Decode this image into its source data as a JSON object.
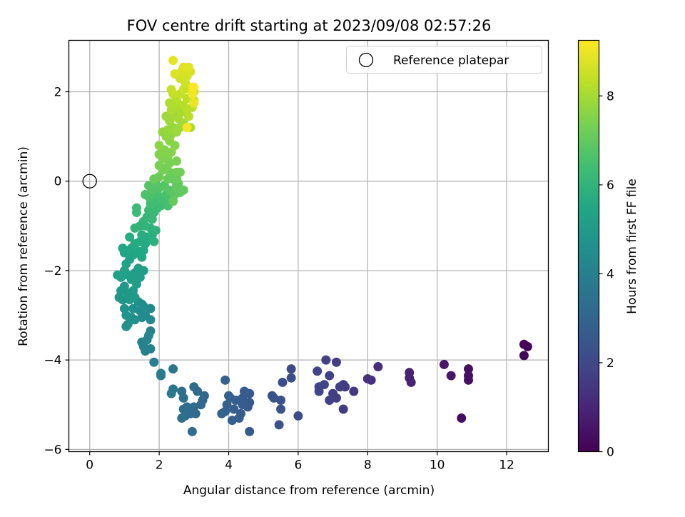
{
  "chart_data": {
    "type": "scatter",
    "title": "FOV centre drift starting at 2023/09/08 02:57:26",
    "xlabel": "Angular distance from reference (arcmin)",
    "ylabel": "Rotation from reference (arcmin)",
    "xlim": [
      -0.6,
      13.2
    ],
    "ylim": [
      -6.05,
      3.15
    ],
    "xticks": [
      0,
      2,
      4,
      6,
      8,
      10,
      12
    ],
    "yticks": [
      -6,
      -4,
      -2,
      0,
      2
    ],
    "xtick_labels": [
      "0",
      "2",
      "4",
      "6",
      "8",
      "10",
      "12"
    ],
    "ytick_labels": [
      "−6",
      "−4",
      "−2",
      "0",
      "2"
    ],
    "grid": true,
    "legend": {
      "position": "top-right",
      "entries": [
        "Reference platepar"
      ]
    },
    "reference_point": {
      "x": 0,
      "y": 0,
      "label": "Reference platepar",
      "marker": "open-circle"
    },
    "colorbar": {
      "label": "Hours from first FF file",
      "colormap": "viridis",
      "range": [
        0,
        9.25
      ],
      "ticks": [
        0,
        2,
        4,
        6,
        8
      ],
      "tick_labels": [
        "0",
        "2",
        "4",
        "6",
        "8"
      ]
    },
    "points": [
      {
        "x": 12.5,
        "y": -3.65,
        "t": 0.1
      },
      {
        "x": 12.6,
        "y": -3.7,
        "t": 0.1
      },
      {
        "x": 12.5,
        "y": -3.9,
        "t": 0.1
      },
      {
        "x": 10.7,
        "y": -5.3,
        "t": 0.3
      },
      {
        "x": 10.9,
        "y": -4.2,
        "t": 0.4
      },
      {
        "x": 10.9,
        "y": -4.35,
        "t": 0.4
      },
      {
        "x": 10.9,
        "y": -4.45,
        "t": 0.4
      },
      {
        "x": 10.2,
        "y": -4.1,
        "t": 0.6
      },
      {
        "x": 10.4,
        "y": -4.35,
        "t": 0.6
      },
      {
        "x": 9.2,
        "y": -4.28,
        "t": 0.9
      },
      {
        "x": 9.2,
        "y": -4.4,
        "t": 0.9
      },
      {
        "x": 9.25,
        "y": -4.5,
        "t": 0.9
      },
      {
        "x": 8.3,
        "y": -4.15,
        "t": 1.2
      },
      {
        "x": 8.0,
        "y": -4.42,
        "t": 1.3
      },
      {
        "x": 8.1,
        "y": -4.45,
        "t": 1.3
      },
      {
        "x": 7.6,
        "y": -4.7,
        "t": 1.5
      },
      {
        "x": 7.3,
        "y": -4.55,
        "t": 1.6
      },
      {
        "x": 7.35,
        "y": -4.6,
        "t": 1.6
      },
      {
        "x": 7.3,
        "y": -5.1,
        "t": 1.6
      },
      {
        "x": 7.2,
        "y": -4.6,
        "t": 1.7
      },
      {
        "x": 7.1,
        "y": -4.05,
        "t": 1.7
      },
      {
        "x": 7.0,
        "y": -4.75,
        "t": 1.7
      },
      {
        "x": 7.1,
        "y": -4.85,
        "t": 1.7
      },
      {
        "x": 6.9,
        "y": -4.35,
        "t": 1.8
      },
      {
        "x": 6.9,
        "y": -4.9,
        "t": 1.8
      },
      {
        "x": 6.8,
        "y": -4.0,
        "t": 1.8
      },
      {
        "x": 6.75,
        "y": -4.55,
        "t": 1.9
      },
      {
        "x": 6.55,
        "y": -4.25,
        "t": 1.9
      },
      {
        "x": 6.6,
        "y": -4.6,
        "t": 1.9
      },
      {
        "x": 6.6,
        "y": -4.7,
        "t": 1.9
      },
      {
        "x": 6.0,
        "y": -5.25,
        "t": 2.1
      },
      {
        "x": 5.8,
        "y": -4.2,
        "t": 2.1
      },
      {
        "x": 5.8,
        "y": -4.4,
        "t": 2.2
      },
      {
        "x": 5.55,
        "y": -4.5,
        "t": 2.2
      },
      {
        "x": 5.5,
        "y": -4.9,
        "t": 2.3
      },
      {
        "x": 5.5,
        "y": -5.1,
        "t": 2.3
      },
      {
        "x": 5.45,
        "y": -5.45,
        "t": 2.3
      },
      {
        "x": 5.3,
        "y": -4.85,
        "t": 2.4
      },
      {
        "x": 5.25,
        "y": -4.8,
        "t": 2.4
      },
      {
        "x": 4.6,
        "y": -5.6,
        "t": 2.6
      },
      {
        "x": 4.6,
        "y": -4.75,
        "t": 2.6
      },
      {
        "x": 4.6,
        "y": -4.95,
        "t": 2.6
      },
      {
        "x": 4.55,
        "y": -5.05,
        "t": 2.6
      },
      {
        "x": 4.45,
        "y": -4.7,
        "t": 2.7
      },
      {
        "x": 4.4,
        "y": -4.85,
        "t": 2.7
      },
      {
        "x": 4.4,
        "y": -5.0,
        "t": 2.7
      },
      {
        "x": 4.35,
        "y": -5.2,
        "t": 2.7
      },
      {
        "x": 4.3,
        "y": -5.3,
        "t": 2.75
      },
      {
        "x": 4.2,
        "y": -4.9,
        "t": 2.8
      },
      {
        "x": 4.15,
        "y": -5.1,
        "t": 2.8
      },
      {
        "x": 4.1,
        "y": -5.35,
        "t": 2.8
      },
      {
        "x": 4.05,
        "y": -4.85,
        "t": 2.85
      },
      {
        "x": 4.0,
        "y": -4.8,
        "t": 2.85
      },
      {
        "x": 3.95,
        "y": -5.0,
        "t": 2.9
      },
      {
        "x": 3.9,
        "y": -5.15,
        "t": 2.9
      },
      {
        "x": 3.9,
        "y": -4.45,
        "t": 2.9
      },
      {
        "x": 3.8,
        "y": -5.2,
        "t": 2.95
      },
      {
        "x": 3.3,
        "y": -4.8,
        "t": 3.1
      },
      {
        "x": 3.25,
        "y": -4.9,
        "t": 3.1
      },
      {
        "x": 3.2,
        "y": -5.0,
        "t": 3.1
      },
      {
        "x": 3.1,
        "y": -4.7,
        "t": 3.15
      },
      {
        "x": 3.05,
        "y": -5.2,
        "t": 3.2
      },
      {
        "x": 3.0,
        "y": -4.6,
        "t": 3.2
      },
      {
        "x": 3.0,
        "y": -5.05,
        "t": 3.2
      },
      {
        "x": 2.95,
        "y": -5.6,
        "t": 3.25
      },
      {
        "x": 2.9,
        "y": -5.2,
        "t": 3.25
      },
      {
        "x": 2.8,
        "y": -5.05,
        "t": 3.3
      },
      {
        "x": 2.75,
        "y": -5.25,
        "t": 3.3
      },
      {
        "x": 2.7,
        "y": -4.85,
        "t": 3.35
      },
      {
        "x": 2.7,
        "y": -5.1,
        "t": 3.35
      },
      {
        "x": 2.65,
        "y": -5.3,
        "t": 3.4
      },
      {
        "x": 2.65,
        "y": -4.7,
        "t": 3.4
      },
      {
        "x": 2.4,
        "y": -4.2,
        "t": 3.6
      },
      {
        "x": 2.4,
        "y": -4.65,
        "t": 3.6
      },
      {
        "x": 2.35,
        "y": -4.75,
        "t": 3.65
      },
      {
        "x": 2.05,
        "y": -4.3,
        "t": 3.8
      },
      {
        "x": 2.05,
        "y": -4.35,
        "t": 3.8
      },
      {
        "x": 1.85,
        "y": -4.05,
        "t": 3.9
      },
      {
        "x": 1.75,
        "y": -3.75,
        "t": 4.0
      },
      {
        "x": 1.6,
        "y": -3.8,
        "t": 4.05
      },
      {
        "x": 1.55,
        "y": -3.7,
        "t": 4.1
      },
      {
        "x": 1.5,
        "y": -3.6,
        "t": 4.1
      },
      {
        "x": 1.75,
        "y": -3.35,
        "t": 4.15
      },
      {
        "x": 1.7,
        "y": -3.45,
        "t": 4.2
      },
      {
        "x": 1.65,
        "y": -3.55,
        "t": 4.2
      },
      {
        "x": 1.75,
        "y": -2.85,
        "t": 4.3
      },
      {
        "x": 1.75,
        "y": -3.1,
        "t": 4.3
      },
      {
        "x": 1.6,
        "y": -3.0,
        "t": 4.35
      },
      {
        "x": 1.55,
        "y": -2.8,
        "t": 4.4
      },
      {
        "x": 1.5,
        "y": -2.75,
        "t": 4.45
      },
      {
        "x": 1.5,
        "y": -3.05,
        "t": 4.45
      },
      {
        "x": 1.45,
        "y": -2.9,
        "t": 4.5
      },
      {
        "x": 1.4,
        "y": -2.7,
        "t": 4.5
      },
      {
        "x": 1.3,
        "y": -3.1,
        "t": 4.55
      },
      {
        "x": 1.25,
        "y": -2.85,
        "t": 4.6
      },
      {
        "x": 1.2,
        "y": -3.05,
        "t": 4.6
      },
      {
        "x": 1.1,
        "y": -3.2,
        "t": 4.65
      },
      {
        "x": 1.05,
        "y": -3.25,
        "t": 4.7
      },
      {
        "x": 1.0,
        "y": -2.85,
        "t": 4.7
      },
      {
        "x": 1.05,
        "y": -3.0,
        "t": 4.75
      },
      {
        "x": 0.95,
        "y": -2.65,
        "t": 4.8
      },
      {
        "x": 0.85,
        "y": -2.6,
        "t": 4.85
      },
      {
        "x": 0.9,
        "y": -2.45,
        "t": 4.9
      },
      {
        "x": 1.0,
        "y": -2.35,
        "t": 4.9
      },
      {
        "x": 1.1,
        "y": -2.5,
        "t": 4.95
      },
      {
        "x": 1.15,
        "y": -2.65,
        "t": 4.95
      },
      {
        "x": 1.25,
        "y": -2.45,
        "t": 5.0
      },
      {
        "x": 1.3,
        "y": -2.6,
        "t": 5.0
      },
      {
        "x": 1.35,
        "y": -2.3,
        "t": 5.05
      },
      {
        "x": 1.45,
        "y": -2.15,
        "t": 5.1
      },
      {
        "x": 1.55,
        "y": -2.0,
        "t": 5.1
      },
      {
        "x": 1.4,
        "y": -1.95,
        "t": 5.15
      },
      {
        "x": 1.3,
        "y": -2.05,
        "t": 5.15
      },
      {
        "x": 1.2,
        "y": -2.2,
        "t": 5.2
      },
      {
        "x": 1.1,
        "y": -2.1,
        "t": 5.2
      },
      {
        "x": 1.0,
        "y": -2.0,
        "t": 5.25
      },
      {
        "x": 0.9,
        "y": -2.15,
        "t": 5.25
      },
      {
        "x": 0.8,
        "y": -2.1,
        "t": 5.3
      },
      {
        "x": 1.05,
        "y": -1.85,
        "t": 5.35
      },
      {
        "x": 1.15,
        "y": -1.75,
        "t": 5.35
      },
      {
        "x": 1.25,
        "y": -1.65,
        "t": 5.4
      },
      {
        "x": 1.0,
        "y": -1.6,
        "t": 5.4
      },
      {
        "x": 0.95,
        "y": -1.5,
        "t": 5.45
      },
      {
        "x": 1.2,
        "y": -1.5,
        "t": 5.45
      },
      {
        "x": 1.35,
        "y": -1.55,
        "t": 5.5
      },
      {
        "x": 1.5,
        "y": -1.7,
        "t": 5.5
      },
      {
        "x": 1.55,
        "y": -1.55,
        "t": 5.55
      },
      {
        "x": 1.6,
        "y": -1.4,
        "t": 5.6
      },
      {
        "x": 1.45,
        "y": -1.35,
        "t": 5.6
      },
      {
        "x": 1.3,
        "y": -1.4,
        "t": 5.65
      },
      {
        "x": 1.15,
        "y": -1.25,
        "t": 5.7
      },
      {
        "x": 1.5,
        "y": -1.2,
        "t": 5.7
      },
      {
        "x": 1.65,
        "y": -1.25,
        "t": 5.75
      },
      {
        "x": 1.8,
        "y": -1.2,
        "t": 5.8
      },
      {
        "x": 1.85,
        "y": -1.35,
        "t": 5.85
      },
      {
        "x": 1.9,
        "y": -1.1,
        "t": 5.9
      },
      {
        "x": 1.75,
        "y": -1.05,
        "t": 5.9
      },
      {
        "x": 1.6,
        "y": -1.0,
        "t": 5.95
      },
      {
        "x": 1.45,
        "y": -1.0,
        "t": 5.95
      },
      {
        "x": 1.3,
        "y": -1.05,
        "t": 6.0
      },
      {
        "x": 1.55,
        "y": -0.9,
        "t": 6.05
      },
      {
        "x": 1.65,
        "y": -0.8,
        "t": 6.1
      },
      {
        "x": 1.8,
        "y": -0.85,
        "t": 6.15
      },
      {
        "x": 1.7,
        "y": -0.65,
        "t": 6.2
      },
      {
        "x": 1.85,
        "y": -0.7,
        "t": 6.2
      },
      {
        "x": 1.95,
        "y": -0.6,
        "t": 6.25
      },
      {
        "x": 1.35,
        "y": -0.6,
        "t": 6.3
      },
      {
        "x": 1.35,
        "y": -0.7,
        "t": 6.3
      },
      {
        "x": 2.05,
        "y": -0.55,
        "t": 6.35
      },
      {
        "x": 1.9,
        "y": -0.45,
        "t": 6.4
      },
      {
        "x": 1.75,
        "y": -0.5,
        "t": 6.4
      },
      {
        "x": 2.1,
        "y": -0.4,
        "t": 6.45
      },
      {
        "x": 2.3,
        "y": -0.4,
        "t": 6.5
      },
      {
        "x": 2.25,
        "y": -0.55,
        "t": 6.5
      },
      {
        "x": 1.95,
        "y": -0.3,
        "t": 6.55
      },
      {
        "x": 2.2,
        "y": -0.3,
        "t": 6.6
      },
      {
        "x": 1.7,
        "y": -0.35,
        "t": 6.6
      },
      {
        "x": 1.6,
        "y": -0.3,
        "t": 6.65
      },
      {
        "x": 1.8,
        "y": -0.2,
        "t": 6.7
      },
      {
        "x": 2.0,
        "y": -0.15,
        "t": 6.7
      },
      {
        "x": 2.15,
        "y": -0.1,
        "t": 6.75
      },
      {
        "x": 1.9,
        "y": -0.05,
        "t": 6.8
      },
      {
        "x": 1.7,
        "y": -0.1,
        "t": 6.8
      },
      {
        "x": 2.3,
        "y": -0.2,
        "t": 6.85
      },
      {
        "x": 2.45,
        "y": -0.3,
        "t": 6.9
      },
      {
        "x": 2.5,
        "y": -0.1,
        "t": 6.95
      },
      {
        "x": 2.6,
        "y": -0.25,
        "t": 6.95
      },
      {
        "x": 2.55,
        "y": -0.05,
        "t": 7.0
      },
      {
        "x": 2.7,
        "y": -0.2,
        "t": 7.0
      },
      {
        "x": 2.4,
        "y": -0.45,
        "t": 7.0
      },
      {
        "x": 2.35,
        "y": 0.05,
        "t": 7.05
      },
      {
        "x": 2.5,
        "y": 0.05,
        "t": 7.1
      },
      {
        "x": 2.25,
        "y": 0.05,
        "t": 7.1
      },
      {
        "x": 1.85,
        "y": 0.05,
        "t": 7.15
      },
      {
        "x": 2.0,
        "y": 0.1,
        "t": 7.15
      },
      {
        "x": 2.3,
        "y": 0.2,
        "t": 7.2
      },
      {
        "x": 2.5,
        "y": 0.2,
        "t": 7.2
      },
      {
        "x": 2.6,
        "y": 0.2,
        "t": 7.25
      },
      {
        "x": 2.1,
        "y": 0.25,
        "t": 7.3
      },
      {
        "x": 2.2,
        "y": 0.3,
        "t": 7.3
      },
      {
        "x": 2.0,
        "y": 0.35,
        "t": 7.35
      },
      {
        "x": 2.3,
        "y": 0.4,
        "t": 7.35
      },
      {
        "x": 2.5,
        "y": 0.45,
        "t": 7.4
      },
      {
        "x": 2.25,
        "y": 0.55,
        "t": 7.45
      },
      {
        "x": 2.1,
        "y": 0.5,
        "t": 7.45
      },
      {
        "x": 2.0,
        "y": 0.6,
        "t": 7.5
      },
      {
        "x": 2.15,
        "y": 0.7,
        "t": 7.5
      },
      {
        "x": 2.35,
        "y": 0.65,
        "t": 7.55
      },
      {
        "x": 2.45,
        "y": 0.8,
        "t": 7.6
      },
      {
        "x": 2.3,
        "y": 0.9,
        "t": 7.6
      },
      {
        "x": 2.0,
        "y": 0.8,
        "t": 7.65
      },
      {
        "x": 2.2,
        "y": 1.0,
        "t": 7.7
      },
      {
        "x": 2.35,
        "y": 1.05,
        "t": 7.7
      },
      {
        "x": 2.1,
        "y": 1.1,
        "t": 7.75
      },
      {
        "x": 2.25,
        "y": 1.15,
        "t": 7.8
      },
      {
        "x": 2.4,
        "y": 1.2,
        "t": 7.8
      },
      {
        "x": 2.5,
        "y": 1.1,
        "t": 7.85
      },
      {
        "x": 2.6,
        "y": 1.2,
        "t": 7.85
      },
      {
        "x": 2.3,
        "y": 1.35,
        "t": 7.9
      },
      {
        "x": 2.2,
        "y": 1.45,
        "t": 7.9
      },
      {
        "x": 2.4,
        "y": 1.5,
        "t": 7.95
      },
      {
        "x": 2.55,
        "y": 1.4,
        "t": 8.0
      },
      {
        "x": 2.7,
        "y": 1.3,
        "t": 8.0
      },
      {
        "x": 2.9,
        "y": 1.2,
        "t": 8.05
      },
      {
        "x": 2.65,
        "y": 1.55,
        "t": 8.05
      },
      {
        "x": 2.35,
        "y": 1.6,
        "t": 8.1
      },
      {
        "x": 2.5,
        "y": 1.65,
        "t": 8.1
      },
      {
        "x": 2.3,
        "y": 1.75,
        "t": 8.15
      },
      {
        "x": 2.5,
        "y": 1.8,
        "t": 8.2
      },
      {
        "x": 2.7,
        "y": 1.7,
        "t": 8.2
      },
      {
        "x": 2.8,
        "y": 1.6,
        "t": 8.25
      },
      {
        "x": 2.85,
        "y": 1.45,
        "t": 8.25
      },
      {
        "x": 2.95,
        "y": 1.65,
        "t": 8.3
      },
      {
        "x": 3.0,
        "y": 1.8,
        "t": 8.35
      },
      {
        "x": 2.8,
        "y": 1.85,
        "t": 8.35
      },
      {
        "x": 2.6,
        "y": 1.95,
        "t": 8.4
      },
      {
        "x": 2.4,
        "y": 1.95,
        "t": 8.4
      },
      {
        "x": 2.35,
        "y": 2.05,
        "t": 8.45
      },
      {
        "x": 2.7,
        "y": 2.05,
        "t": 8.5
      },
      {
        "x": 2.9,
        "y": 2.05,
        "t": 8.5
      },
      {
        "x": 3.0,
        "y": 2.0,
        "t": 8.55
      },
      {
        "x": 2.75,
        "y": 2.2,
        "t": 8.6
      },
      {
        "x": 2.6,
        "y": 2.3,
        "t": 8.6
      },
      {
        "x": 2.8,
        "y": 2.35,
        "t": 8.65
      },
      {
        "x": 2.9,
        "y": 2.45,
        "t": 8.7
      },
      {
        "x": 2.65,
        "y": 2.45,
        "t": 8.7
      },
      {
        "x": 2.45,
        "y": 2.4,
        "t": 8.75
      },
      {
        "x": 2.7,
        "y": 2.55,
        "t": 8.8
      },
      {
        "x": 2.85,
        "y": 2.55,
        "t": 8.85
      },
      {
        "x": 2.4,
        "y": 2.7,
        "t": 8.9
      },
      {
        "x": 2.95,
        "y": 2.1,
        "t": 8.95
      },
      {
        "x": 3.0,
        "y": 1.75,
        "t": 9.0
      },
      {
        "x": 2.95,
        "y": 1.95,
        "t": 9.1
      },
      {
        "x": 2.8,
        "y": 1.2,
        "t": 9.15
      },
      {
        "x": 3.0,
        "y": 2.1,
        "t": 9.2
      }
    ]
  }
}
